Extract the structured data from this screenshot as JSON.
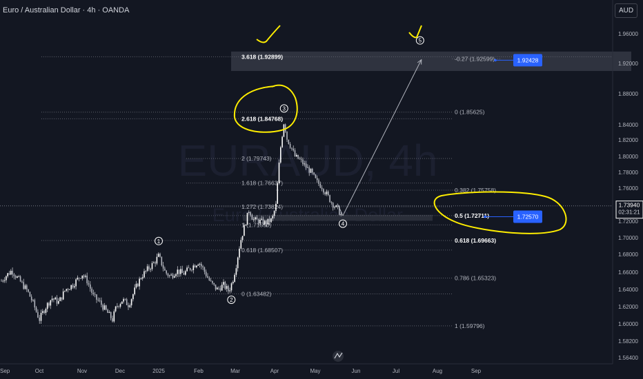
{
  "header": {
    "title": "Euro / Australian Dollar · 4h · OANDA",
    "axis_unit": "AUD"
  },
  "watermark": {
    "symbol": "EURAUD, 4h",
    "name": "Euro / Australian Dollar"
  },
  "colors": {
    "background": "#131722",
    "candle": "#d9dbe0",
    "fib_line": "#5d606b",
    "target_box": "#3a3e4a",
    "annotation": "#ffee00",
    "blue_label": "#2962ff",
    "arrow": "#b2b5be"
  },
  "chart_data": {
    "type": "candlestick",
    "symbol": "EURAUD",
    "timeframe": "4h",
    "x_axis": {
      "ticks": [
        "Sep",
        "Oct",
        "Nov",
        "Dec",
        "2025",
        "Feb",
        "Mar",
        "Apr",
        "May",
        "Jun",
        "Jul",
        "Aug",
        "Sep"
      ]
    },
    "y_axis": {
      "ticks": [
        "1.96000",
        "1.92000",
        "1.88000",
        "1.84000",
        "1.82000",
        "1.80000",
        "1.78000",
        "1.76000",
        "1.72000",
        "1.70000",
        "1.68000",
        "1.66000",
        "1.64000",
        "1.62000",
        "1.60000",
        "1.58200",
        "1.56400"
      ],
      "range": [
        1.555,
        1.985
      ]
    },
    "current_price": {
      "value": 1.7394,
      "label": "1.73940",
      "countdown": "02:31:21"
    },
    "price_path": [
      [
        "Sep 1",
        1.648
      ],
      [
        "Sep 5",
        1.655
      ],
      [
        "Sep 10",
        1.662
      ],
      [
        "Sep 16",
        1.65
      ],
      [
        "Sep 22",
        1.638
      ],
      [
        "Sep 26",
        1.625
      ],
      [
        "Oct 1",
        1.605
      ],
      [
        "Oct 5",
        1.618
      ],
      [
        "Oct 10",
        1.63
      ],
      [
        "Oct 15",
        1.625
      ],
      [
        "Oct 20",
        1.64
      ],
      [
        "Oct 25",
        1.645
      ],
      [
        "Nov 1",
        1.658
      ],
      [
        "Nov 5",
        1.65
      ],
      [
        "Nov 10",
        1.632
      ],
      [
        "Nov 15",
        1.625
      ],
      [
        "Nov 20",
        1.615
      ],
      [
        "Nov 25",
        1.605
      ],
      [
        "Nov 28",
        1.62
      ],
      [
        "Dec 3",
        1.628
      ],
      [
        "Dec 8",
        1.622
      ],
      [
        "Dec 13",
        1.64
      ],
      [
        "Dec 18",
        1.655
      ],
      [
        "Dec 23",
        1.663
      ],
      [
        "Dec 28",
        1.67
      ],
      [
        "Jan 1",
        1.678
      ],
      [
        "Jan 6",
        1.66
      ],
      [
        "Jan 10",
        1.655
      ],
      [
        "Jan 15",
        1.662
      ],
      [
        "Jan 20",
        1.658
      ],
      [
        "Jan 25",
        1.664
      ],
      [
        "Feb 1",
        1.672
      ],
      [
        "Feb 5",
        1.662
      ],
      [
        "Feb 10",
        1.648
      ],
      [
        "Feb 15",
        1.64
      ],
      [
        "Feb 20",
        1.645
      ],
      [
        "Feb 24",
        1.638
      ],
      [
        "Feb 27",
        1.65
      ],
      [
        "Mar 2",
        1.67
      ],
      [
        "Mar 5",
        1.695
      ],
      [
        "Mar 9",
        1.718
      ],
      [
        "Mar 12",
        1.735
      ],
      [
        "Mar 15",
        1.722
      ],
      [
        "Mar 20",
        1.72
      ],
      [
        "Mar 25",
        1.718
      ],
      [
        "Mar 30",
        1.722
      ],
      [
        "Apr 2",
        1.74
      ],
      [
        "Apr 5",
        1.805
      ],
      [
        "Apr 8",
        1.845
      ],
      [
        "Apr 10",
        1.822
      ],
      [
        "Apr 13",
        1.812
      ],
      [
        "Apr 16",
        1.8
      ],
      [
        "Apr 20",
        1.795
      ],
      [
        "Apr 24",
        1.787
      ],
      [
        "Apr 28",
        1.78
      ],
      [
        "May 2",
        1.768
      ],
      [
        "May 6",
        1.762
      ],
      [
        "May 10",
        1.752
      ],
      [
        "May 14",
        1.742
      ],
      [
        "May 18",
        1.735
      ],
      [
        "May 21",
        1.727
      ]
    ],
    "fibonacci_levels": [
      {
        "label": "3.618 (1.92899)",
        "value": 1.92899
      },
      {
        "label": "2.618 (1.84768)",
        "value": 1.84768
      },
      {
        "label": "2 (1.79743)",
        "value": 1.79743
      },
      {
        "label": "1.618 (1.76637)",
        "value": 1.76637
      },
      {
        "label": "1.272 (1.73824)",
        "value": 1.73824
      },
      {
        "label": "1 (1.71550)",
        "value": 1.7155
      },
      {
        "label": "0.618 (1.68507)",
        "value": 1.68507
      },
      {
        "label": "0 (1.63482)",
        "value": 1.63482
      },
      {
        "label": "-0.27 (1.92599)",
        "value": 1.92599
      },
      {
        "label": "0 (1.85625)",
        "value": 1.85625
      },
      {
        "label": "0.382 (1.75758)",
        "value": 1.75758
      },
      {
        "label": "0.5 (1.72711)",
        "value": 1.72711
      },
      {
        "label": "0.618 (1.69663)",
        "value": 1.69663
      },
      {
        "label": "0.786 (1.65323)",
        "value": 1.65323
      },
      {
        "label": "1 (1.59796)",
        "value": 1.59796
      }
    ],
    "wave_labels": [
      {
        "label": "1",
        "date": "Jan 1",
        "value": 1.696
      },
      {
        "label": "2",
        "date": "Feb 26",
        "value": 1.628
      },
      {
        "label": "3",
        "date": "Apr 8",
        "value": 1.861
      },
      {
        "label": "4",
        "date": "May 22",
        "value": 1.717
      },
      {
        "label": "5",
        "date": "Jul 19",
        "value": 1.951
      }
    ],
    "target_zone": {
      "from": 1.91,
      "to": 1.936
    },
    "projection": {
      "from": [
        "May 22",
        1.727
      ],
      "to": [
        "Jul 20",
        1.925
      ]
    },
    "price_labels": [
      {
        "label": "1.92428",
        "value": 1.92428
      },
      {
        "label": "1.72570",
        "value": 1.7257
      }
    ]
  }
}
